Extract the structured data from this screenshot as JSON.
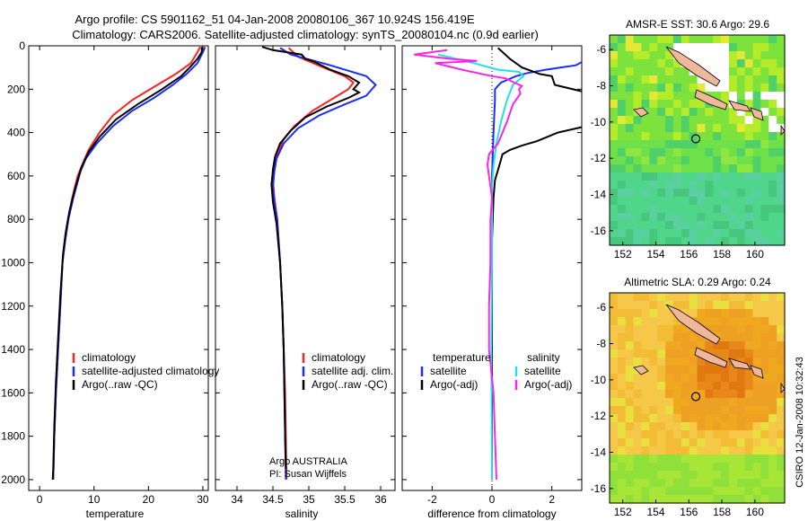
{
  "header": {
    "line1": "Argo profile: CS 5901162_51 04-Jan-2008 20080106_367 10.924S 156.419E",
    "line2": "Climatology: CARS2006. Satellite-adjusted climatology: synTS_20080104.nc (0.9d earlier)"
  },
  "colors": {
    "climatology": "#ff2020",
    "satellite": "#1a2cff",
    "argo": "#000000",
    "sat_salinity": "#22e0e8",
    "argo_adj": "#ff22ee"
  },
  "chart_data": [
    {
      "type": "line",
      "id": "temperature",
      "xlabel": "temperature",
      "ylabel": "",
      "xlim": [
        -2,
        31
      ],
      "ylim": [
        2050,
        0
      ],
      "xticks": [
        0,
        10,
        20,
        30
      ],
      "yticks": [
        0,
        200,
        400,
        600,
        800,
        1000,
        1200,
        1400,
        1600,
        1800,
        2000
      ],
      "legend_position": "bottom-right",
      "legend": [
        "climatology",
        "satellite-adjusted climatology",
        "Argo(..raw -QC)"
      ],
      "series": [
        {
          "name": "climatology",
          "color": "#ff2020",
          "points": [
            [
              29.5,
              5
            ],
            [
              29.0,
              30
            ],
            [
              27.8,
              80
            ],
            [
              25.0,
              130
            ],
            [
              21.0,
              190
            ],
            [
              17.0,
              250
            ],
            [
              13.5,
              320
            ],
            [
              11.0,
              400
            ],
            [
              9.0,
              480
            ],
            [
              7.8,
              550
            ],
            [
              7.0,
              600
            ],
            [
              6.0,
              700
            ],
            [
              5.2,
              800
            ],
            [
              4.6,
              900
            ],
            [
              4.2,
              1000
            ],
            [
              3.8,
              1200
            ],
            [
              3.4,
              1400
            ],
            [
              3.0,
              1600
            ],
            [
              2.7,
              1800
            ],
            [
              2.5,
              2000
            ]
          ]
        },
        {
          "name": "satellite-adjusted climatology",
          "color": "#1a2cff",
          "points": [
            [
              30.4,
              5
            ],
            [
              30.0,
              30
            ],
            [
              29.0,
              80
            ],
            [
              27.0,
              130
            ],
            [
              24.5,
              180
            ],
            [
              21.0,
              240
            ],
            [
              17.0,
              300
            ],
            [
              13.5,
              370
            ],
            [
              10.5,
              450
            ],
            [
              8.5,
              520
            ],
            [
              7.5,
              580
            ],
            [
              6.2,
              700
            ],
            [
              5.3,
              800
            ],
            [
              4.7,
              900
            ],
            [
              4.2,
              1000
            ],
            [
              3.8,
              1200
            ],
            [
              3.4,
              1400
            ],
            [
              3.0,
              1600
            ],
            [
              2.7,
              1800
            ],
            [
              2.5,
              2000
            ]
          ]
        },
        {
          "name": "Argo(..raw -QC)",
          "color": "#000000",
          "points": [
            [
              29.8,
              5
            ],
            [
              29.8,
              30
            ],
            [
              29.0,
              60
            ],
            [
              27.6,
              100
            ],
            [
              26.0,
              140
            ],
            [
              22.5,
              200
            ],
            [
              18.0,
              270
            ],
            [
              14.0,
              340
            ],
            [
              11.0,
              420
            ],
            [
              9.0,
              490
            ],
            [
              7.7,
              560
            ],
            [
              6.6,
              650
            ],
            [
              5.5,
              760
            ],
            [
              4.8,
              860
            ],
            [
              4.3,
              960
            ],
            [
              3.8,
              1150
            ],
            [
              3.4,
              1350
            ],
            [
              3.0,
              1550
            ],
            [
              2.7,
              1750
            ],
            [
              2.5,
              1950
            ],
            [
              2.4,
              2000
            ]
          ]
        }
      ]
    },
    {
      "type": "line",
      "id": "salinity",
      "xlabel": "salinity",
      "xlim": [
        33.7,
        36.2
      ],
      "ylim": [
        2050,
        0
      ],
      "xticks": [
        34,
        34.5,
        35,
        35.5,
        36
      ],
      "legend_position": "bottom-right",
      "legend": [
        "climatology",
        "satellite adj. clim.",
        "Argo(..raw -QC)"
      ],
      "annotation": [
        "Argo AUSTRALIA",
        "PI: Susan Wijffels"
      ],
      "series": [
        {
          "name": "climatology",
          "color": "#ff2020",
          "points": [
            [
              34.72,
              10
            ],
            [
              34.85,
              50
            ],
            [
              35.2,
              100
            ],
            [
              35.5,
              140
            ],
            [
              35.62,
              170
            ],
            [
              35.55,
              200
            ],
            [
              35.35,
              240
            ],
            [
              35.05,
              300
            ],
            [
              34.8,
              370
            ],
            [
              34.65,
              430
            ],
            [
              34.56,
              500
            ],
            [
              34.52,
              560
            ],
            [
              34.5,
              620
            ],
            [
              34.52,
              700
            ],
            [
              34.56,
              800
            ],
            [
              34.6,
              1000
            ],
            [
              34.63,
              1200
            ],
            [
              34.65,
              1400
            ],
            [
              34.67,
              1600
            ],
            [
              34.68,
              1800
            ],
            [
              34.69,
              2000
            ]
          ]
        },
        {
          "name": "satellite adj. clim.",
          "color": "#1a2cff",
          "points": [
            [
              34.6,
              10
            ],
            [
              34.75,
              40
            ],
            [
              35.3,
              90
            ],
            [
              35.8,
              140
            ],
            [
              35.93,
              180
            ],
            [
              35.8,
              230
            ],
            [
              35.5,
              270
            ],
            [
              35.15,
              320
            ],
            [
              34.85,
              380
            ],
            [
              34.65,
              450
            ],
            [
              34.55,
              520
            ],
            [
              34.52,
              580
            ],
            [
              34.5,
              650
            ],
            [
              34.52,
              720
            ],
            [
              34.56,
              800
            ],
            [
              34.6,
              1000
            ],
            [
              34.63,
              1200
            ],
            [
              34.65,
              1400
            ],
            [
              34.66,
              1600
            ],
            [
              34.67,
              1800
            ],
            [
              34.68,
              2000
            ]
          ]
        },
        {
          "name": "Argo(..raw -QC)",
          "color": "#000000",
          "points": [
            [
              34.35,
              5
            ],
            [
              34.5,
              20
            ],
            [
              34.9,
              40
            ],
            [
              34.95,
              60
            ],
            [
              35.05,
              70
            ],
            [
              35.3,
              110
            ],
            [
              35.55,
              140
            ],
            [
              35.7,
              170
            ],
            [
              35.62,
              200
            ],
            [
              35.7,
              215
            ],
            [
              35.55,
              240
            ],
            [
              35.25,
              280
            ],
            [
              34.95,
              330
            ],
            [
              34.75,
              390
            ],
            [
              34.6,
              450
            ],
            [
              34.53,
              510
            ],
            [
              34.5,
              570
            ],
            [
              34.48,
              640
            ],
            [
              34.5,
              720
            ],
            [
              34.55,
              820
            ],
            [
              34.6,
              1000
            ],
            [
              34.63,
              1200
            ],
            [
              34.65,
              1400
            ],
            [
              34.66,
              1600
            ],
            [
              34.67,
              1800
            ],
            [
              34.68,
              1950
            ]
          ]
        }
      ]
    },
    {
      "type": "line",
      "id": "difference",
      "xlabel": "difference from climatology",
      "xlim": [
        -3,
        3
      ],
      "ylim": [
        2050,
        0
      ],
      "xticks": [
        -2,
        0,
        2
      ],
      "legend_position": "bottom",
      "legend": [
        "temperature",
        "satellite",
        "Argo(-adj)",
        "salinity",
        "satellite",
        "Argo(-adj)"
      ],
      "series": [
        {
          "name": "temperature satellite",
          "color": "#1a2cff",
          "points": [
            [
              3.3,
              20
            ],
            [
              3.2,
              60
            ],
            [
              2.8,
              90
            ],
            [
              2.3,
              100
            ],
            [
              1.8,
              110
            ],
            [
              1.2,
              125
            ],
            [
              0.8,
              140
            ],
            [
              0.3,
              170
            ],
            [
              0.1,
              200
            ],
            [
              0.1,
              250
            ],
            [
              0.05,
              400
            ],
            [
              0,
              600
            ],
            [
              0,
              1000
            ],
            [
              0,
              1400
            ],
            [
              0,
              1800
            ],
            [
              0,
              2000
            ]
          ]
        },
        {
          "name": "temperature Argo(-adj)",
          "color": "#000000",
          "points": [
            [
              0.2,
              10
            ],
            [
              0.6,
              60
            ],
            [
              1.0,
              100
            ],
            [
              1.6,
              130
            ],
            [
              2.0,
              140
            ],
            [
              2.1,
              180
            ],
            [
              3.3,
              220
            ],
            [
              3.6,
              280
            ],
            [
              3.8,
              350
            ],
            [
              2.2,
              400
            ],
            [
              1.5,
              440
            ],
            [
              1.0,
              460
            ],
            [
              0.6,
              480
            ],
            [
              0.35,
              500
            ],
            [
              0.25,
              550
            ],
            [
              0.1,
              620
            ],
            [
              0.05,
              700
            ],
            [
              0,
              900
            ],
            [
              0,
              1200
            ],
            [
              0,
              1600
            ],
            [
              0,
              2000
            ]
          ]
        },
        {
          "name": "salinity satellite",
          "color": "#22e0e8",
          "points": [
            [
              -1.8,
              40
            ],
            [
              -1.2,
              60
            ],
            [
              -0.6,
              80
            ],
            [
              0.2,
              110
            ],
            [
              0.9,
              120
            ],
            [
              1.05,
              140
            ],
            [
              0.7,
              180
            ],
            [
              0.5,
              250
            ],
            [
              0.3,
              350
            ],
            [
              0.15,
              450
            ],
            [
              0.05,
              550
            ],
            [
              0,
              650
            ],
            [
              0,
              1000
            ],
            [
              -0.02,
              1400
            ],
            [
              0,
              2000
            ]
          ]
        },
        {
          "name": "salinity Argo(-adj)",
          "color": "#ff22ee",
          "points": [
            [
              -1.5,
              20
            ],
            [
              -2.6,
              40
            ],
            [
              -1.4,
              60
            ],
            [
              -0.5,
              70
            ],
            [
              -1.9,
              80
            ],
            [
              -1.0,
              110
            ],
            [
              0.0,
              140
            ],
            [
              0.45,
              150
            ],
            [
              0.75,
              170
            ],
            [
              1.0,
              185
            ],
            [
              0.9,
              200
            ],
            [
              0.95,
              220
            ],
            [
              0.7,
              270
            ],
            [
              0.5,
              350
            ],
            [
              0.35,
              400
            ],
            [
              0.2,
              450
            ],
            [
              -0.1,
              500
            ],
            [
              -0.15,
              550
            ],
            [
              -0.1,
              600
            ],
            [
              0,
              700
            ],
            [
              -0.05,
              800
            ],
            [
              -0.05,
              1000
            ],
            [
              -0.1,
              1200
            ],
            [
              -0.1,
              1400
            ],
            [
              0.05,
              1600
            ],
            [
              0.1,
              1800
            ],
            [
              0.15,
              2000
            ]
          ]
        }
      ]
    },
    {
      "type": "heatmap",
      "id": "sst-map",
      "title": "AMSR-E SST: 30.6 Argo: 29.6",
      "xlim": [
        151.2,
        161.8
      ],
      "ylim": [
        -16.8,
        -5.2
      ],
      "xticks": [
        152,
        154,
        156,
        158,
        160
      ],
      "yticks": [
        -6,
        -8,
        -10,
        -12,
        -14,
        -16
      ],
      "marker": {
        "lon": 156.419,
        "lat": -10.924
      }
    },
    {
      "type": "heatmap",
      "id": "sla-map",
      "title": "Altimetric SLA: 0.29 Argo: 0.24",
      "xlim": [
        151.2,
        161.8
      ],
      "ylim": [
        -16.8,
        -5.2
      ],
      "xticks": [
        152,
        154,
        156,
        158,
        160
      ],
      "yticks": [
        -6,
        -8,
        -10,
        -12,
        -14,
        -16
      ],
      "marker": {
        "lon": 156.419,
        "lat": -10.924
      }
    }
  ],
  "footer": {
    "credit": "CSIRO 12-Jan-2008 10:32:43"
  }
}
